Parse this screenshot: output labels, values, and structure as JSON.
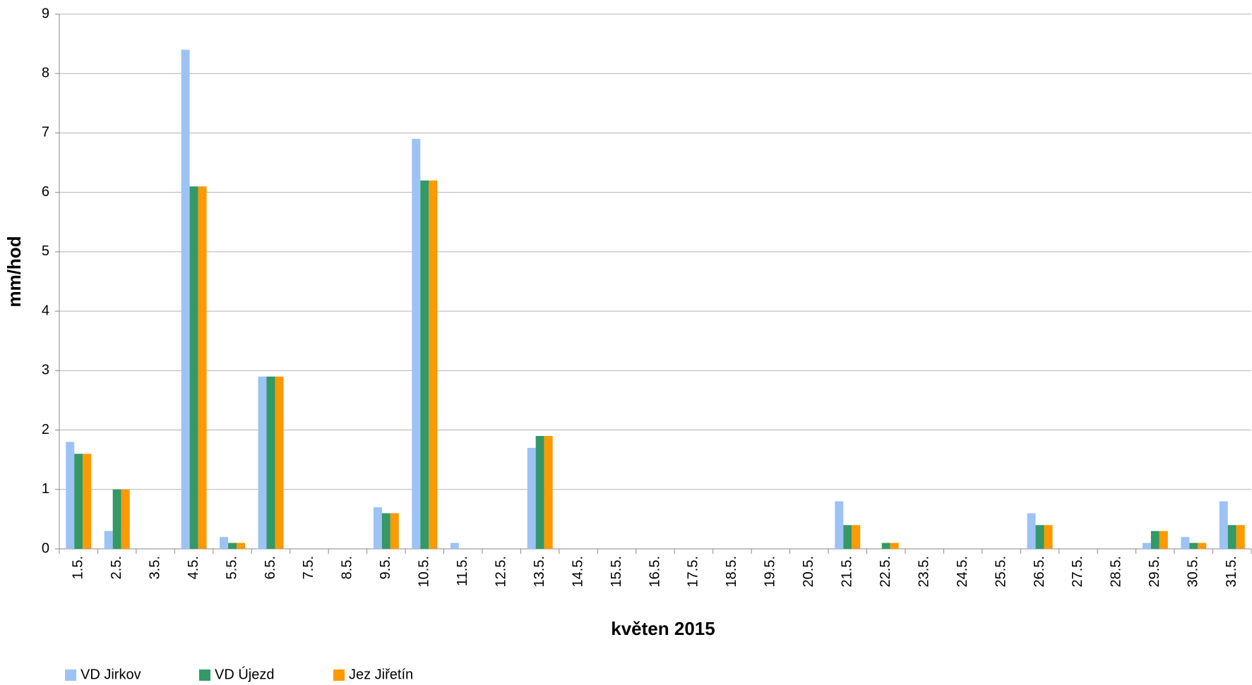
{
  "chart_data": {
    "type": "bar",
    "y_label": "mm/hod",
    "x_label": "květen 2015",
    "categories": [
      "1.5.",
      "2.5.",
      "3.5.",
      "4.5.",
      "5.5.",
      "6.5.",
      "7.5.",
      "8.5.",
      "9.5.",
      "10.5.",
      "11.5.",
      "12.5.",
      "13.5.",
      "14.5.",
      "15.5.",
      "16.5.",
      "17.5.",
      "18.5.",
      "19.5.",
      "20.5.",
      "21.5.",
      "22.5.",
      "23.5.",
      "24.5.",
      "25.5.",
      "26.5.",
      "27.5.",
      "28.5.",
      "29.5.",
      "30.5.",
      "31.5."
    ],
    "series": [
      {
        "name": "VD Jirkov",
        "color": "#9dc3f5",
        "values": [
          1.8,
          0.3,
          0,
          8.4,
          0.2,
          2.9,
          0,
          0,
          0.7,
          6.9,
          0.1,
          0,
          1.7,
          0,
          0,
          0,
          0,
          0,
          0,
          0,
          0.8,
          0,
          0,
          0,
          0,
          0.6,
          0,
          0,
          0.1,
          0.2,
          0.8
        ]
      },
      {
        "name": "VD Újezd",
        "color": "#339966",
        "values": [
          1.6,
          1,
          0,
          6.1,
          0.1,
          2.9,
          0,
          0,
          0.6,
          6.2,
          0,
          0,
          1.9,
          0,
          0,
          0,
          0,
          0,
          0,
          0,
          0.4,
          0.1,
          0,
          0,
          0,
          0.4,
          0,
          0,
          0.3,
          0.1,
          0.4
        ]
      },
      {
        "name": "Jez Jiřetín",
        "color": "#ff9900",
        "values": [
          1.6,
          1,
          0,
          6.1,
          0.1,
          2.9,
          0,
          0,
          0.6,
          6.2,
          0,
          0,
          1.9,
          0,
          0,
          0,
          0,
          0,
          0,
          0,
          0.4,
          0.1,
          0,
          0,
          0,
          0.4,
          0,
          0,
          0.3,
          0.1,
          0.4
        ]
      }
    ],
    "ylim": [
      0,
      9
    ],
    "yticks": [
      0,
      1,
      2,
      3,
      4,
      5,
      6,
      7,
      8,
      9
    ],
    "grid": true,
    "legend": "bottom-left"
  }
}
